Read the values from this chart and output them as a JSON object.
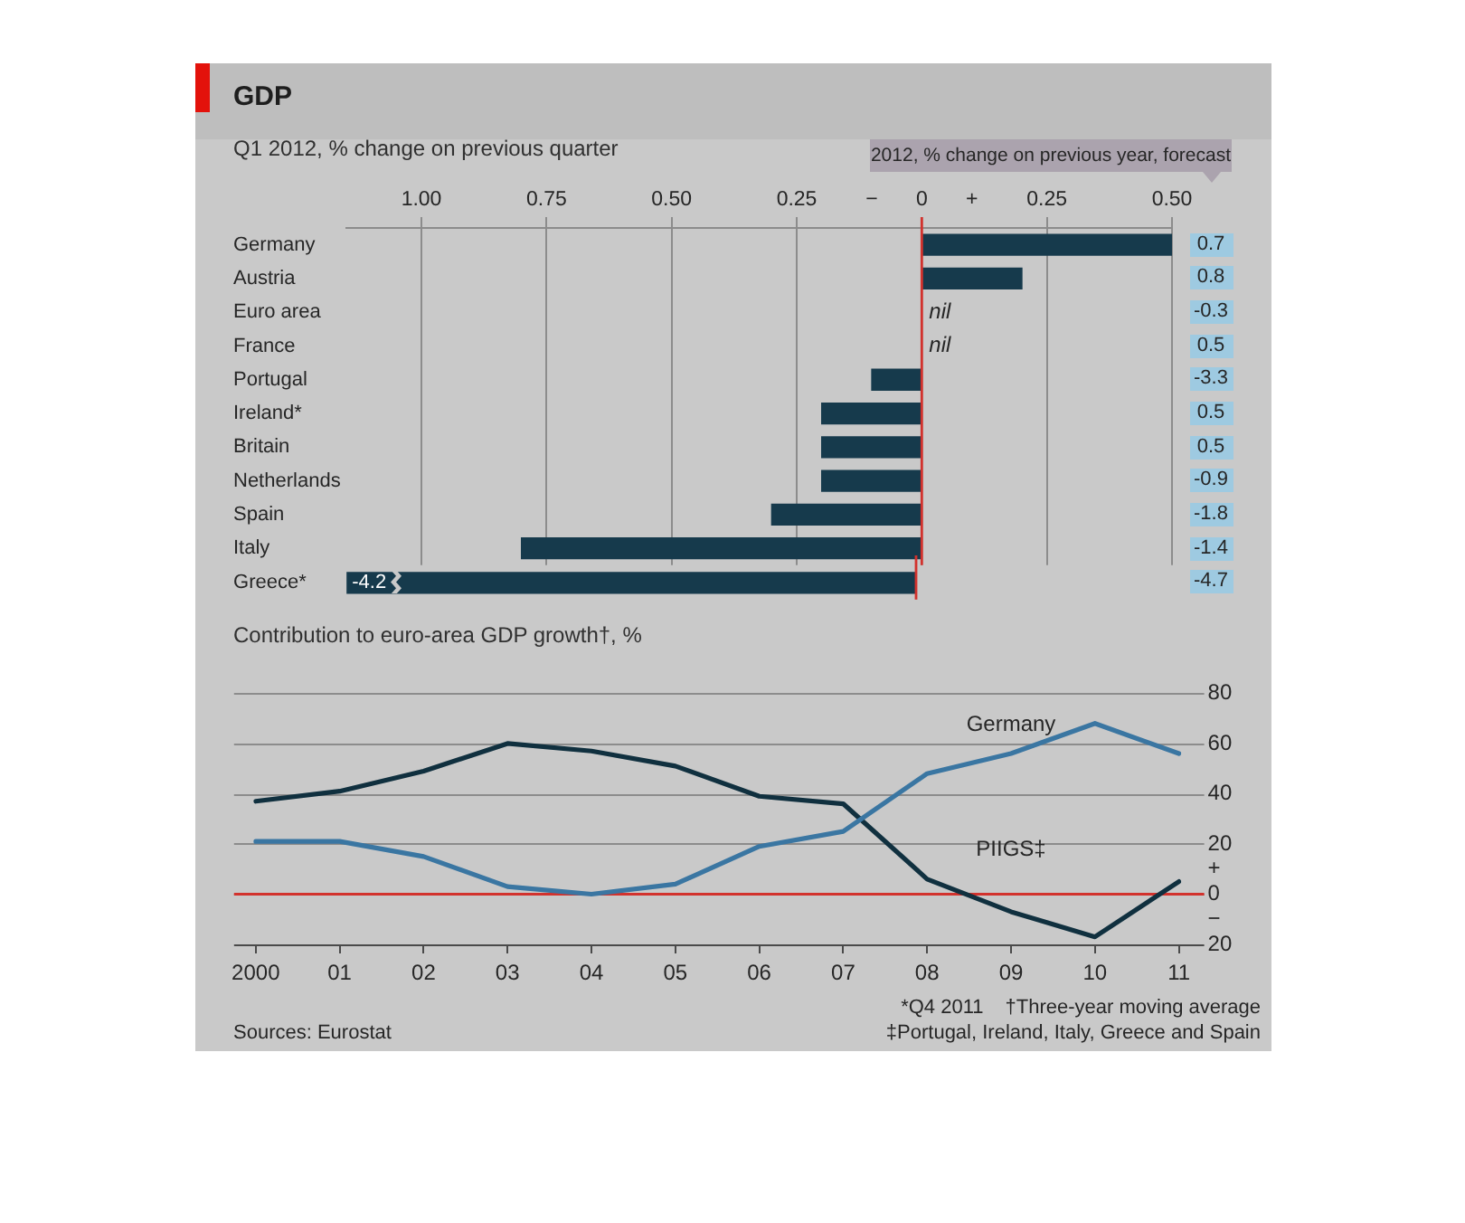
{
  "chart_data": [
    {
      "type": "bar",
      "title": "GDP",
      "subtitle": "Q1 2012, % change on previous quarter",
      "orientation": "horizontal",
      "categories": [
        "Germany",
        "Austria",
        "Euro area",
        "France",
        "Portugal",
        "Ireland*",
        "Britain",
        "Netherlands",
        "Spain",
        "Italy"
      ],
      "values": [
        0.5,
        0.2,
        0,
        0,
        -0.1,
        -0.2,
        -0.2,
        -0.2,
        -0.3,
        -0.8
      ],
      "value_labels": [
        null,
        null,
        "nil",
        "nil",
        null,
        null,
        null,
        null,
        null,
        null
      ],
      "color": "#163a4c",
      "xlim": [
        -1.15,
        0.5
      ],
      "xticks": [
        {
          "value": -1,
          "label": "1.00"
        },
        {
          "value": -0.75,
          "label": "0.75"
        },
        {
          "value": -0.5,
          "label": "0.50"
        },
        {
          "value": -0.25,
          "label": "0.25"
        },
        {
          "value": -0.1,
          "label": "−"
        },
        0,
        {
          "value": 0.1,
          "label": "+"
        },
        0.25,
        {
          "value": 0.5,
          "label": "0.50"
        }
      ],
      "grid": "x",
      "ref_lines": [
        {
          "axis": "x",
          "value": 0,
          "color": "#d2322d"
        }
      ]
    },
    {
      "type": "bar",
      "orientation": "horizontal",
      "categories": [
        "Greece*"
      ],
      "values": [
        -4.2
      ],
      "data_labels": true,
      "color": "#163a4c",
      "tick_labels": "y",
      "ref_lines": [
        {
          "axis": "x",
          "value": 0,
          "color": "#d2322d"
        }
      ]
    },
    {
      "type": "other",
      "title": "2012, % change on previous year, forecast",
      "categories": [
        null,
        null,
        null,
        null,
        null,
        null,
        null,
        null,
        null,
        null,
        null
      ],
      "values": [
        0.7,
        0.8,
        -0.3,
        0.5,
        -3.3,
        0.5,
        0.5,
        -0.9,
        -1.8,
        -1.4,
        -4.7
      ],
      "color": "#9ecae1",
      "data_labels": true
    },
    {
      "type": "line",
      "title": "Contribution to euro-area GDP growth†, %",
      "categories": [
        "2000",
        "01",
        "02",
        "03",
        "04",
        "05",
        "06",
        "07",
        "08",
        "09",
        "10",
        "11"
      ],
      "series": [
        {
          "name": "Germany",
          "color": "#3a76a2",
          "values": [
            21,
            21,
            15,
            3,
            0,
            4,
            19,
            25,
            48,
            56,
            68,
            56
          ]
        },
        {
          "name": "PIIGS‡",
          "color": "#10303f",
          "values": [
            37,
            41,
            49,
            60,
            57,
            51,
            39,
            36,
            6,
            -7,
            -17,
            5
          ]
        }
      ],
      "ylim": [
        -20,
        80
      ],
      "yticks": [
        {
          "value": -20,
          "label": "20"
        },
        {
          "value": -10,
          "label": "−"
        },
        0,
        {
          "value": 10,
          "label": "+"
        },
        20,
        40,
        60,
        80
      ],
      "grid": "y",
      "ref_lines": [
        {
          "axis": "y",
          "value": 0,
          "color": "#d2322d"
        }
      ],
      "annotations": [
        "*Q4 2011",
        "†Three-year moving average",
        "‡Portugal, Ireland, Italy, Greece and Spain",
        "Sources: Eurostat"
      ]
    }
  ]
}
